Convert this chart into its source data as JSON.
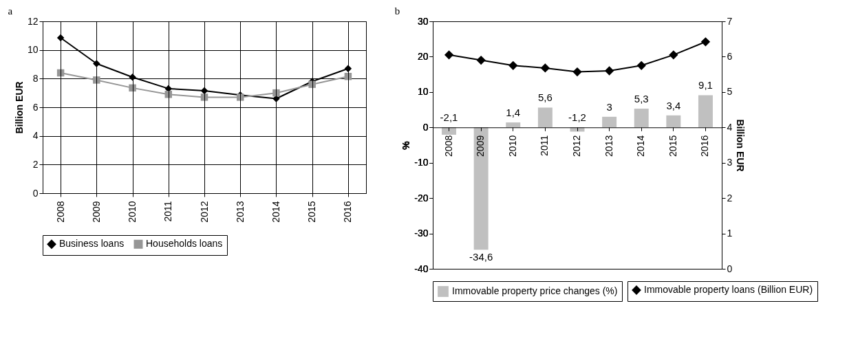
{
  "chart_data": [
    {
      "type": "line",
      "annotations": [
        "a"
      ],
      "ylabel": "Billion EUR",
      "categories": [
        "2008",
        "2009",
        "2010",
        "2011",
        "2012",
        "2013",
        "2014",
        "2015",
        "2016"
      ],
      "series": [
        {
          "name": "Business loans",
          "color": "#000000",
          "marker": "diamond",
          "values": [
            10.85,
            9.05,
            8.1,
            7.3,
            7.15,
            6.85,
            6.6,
            7.8,
            8.7
          ]
        },
        {
          "name": "Households loans",
          "color": "#969696",
          "marker": "square",
          "values": [
            8.4,
            7.9,
            7.35,
            6.9,
            6.7,
            6.7,
            7.0,
            7.6,
            8.15
          ]
        }
      ],
      "ylim": [
        0,
        12
      ],
      "yticks": [
        0,
        2,
        4,
        6,
        8,
        10,
        12
      ],
      "grid": true,
      "legend": "bottom"
    },
    {
      "type": "bar",
      "annotations": [
        "b"
      ],
      "ylabel": "%",
      "y2label": "Billion EUR",
      "categories": [
        "2008",
        "2009",
        "2010",
        "2011",
        "2012",
        "2013",
        "2014",
        "2015",
        "2016"
      ],
      "series": [
        {
          "name": "Immovable property price changes (%)",
          "color": "#c0c0c0",
          "values": [
            -2.1,
            -34.6,
            1.4,
            5.6,
            -1.2,
            3,
            5.3,
            3.4,
            9.1
          ],
          "value_labels": [
            "-2,1",
            "-34,6",
            "1,4",
            "5,6",
            "-1,2",
            "3",
            "5,3",
            "3,4",
            "9,1"
          ]
        },
        {
          "name": "Immovable property loans (Billion EUR)",
          "type": "line",
          "axis": "y2",
          "color": "#000000",
          "marker": "diamond",
          "values": [
            6.05,
            5.9,
            5.75,
            5.68,
            5.57,
            5.6,
            5.75,
            6.05,
            6.42
          ]
        }
      ],
      "ylim": [
        -40,
        30
      ],
      "yticks": [
        -40,
        -30,
        -20,
        -10,
        0,
        10,
        20,
        30
      ],
      "y2lim": [
        0,
        7
      ],
      "y2ticks": [
        0,
        1,
        2,
        3,
        4,
        5,
        6,
        7
      ],
      "legend": "bottom"
    }
  ]
}
